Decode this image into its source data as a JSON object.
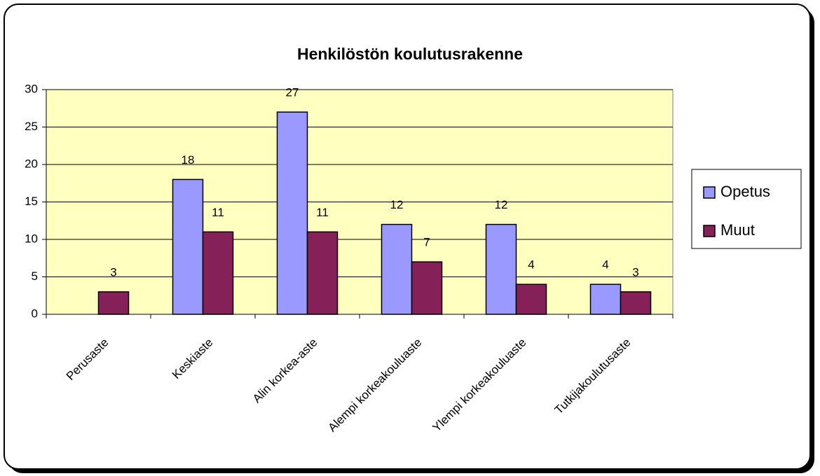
{
  "chart_data": {
    "type": "bar",
    "title": "Henkilöstön koulutusrakenne",
    "categories": [
      "Perusaste",
      "Keskiaste",
      "Alin korkea-aste",
      "Alempi korkeakouluaste",
      "Ylempi korkeakouluaste",
      "Tutkijakoulutusaste"
    ],
    "series": [
      {
        "name": "Opetus",
        "color": "#9999ff",
        "values": [
          null,
          18,
          27,
          12,
          12,
          4
        ]
      },
      {
        "name": "Muut",
        "color": "#862058",
        "values": [
          3,
          11,
          11,
          7,
          4,
          3
        ]
      }
    ],
    "ylim": [
      0,
      30
    ],
    "yticks": [
      0,
      5,
      10,
      15,
      20,
      25,
      30
    ],
    "grid": true,
    "legend": "right",
    "plot_background": "#ffffc0"
  }
}
